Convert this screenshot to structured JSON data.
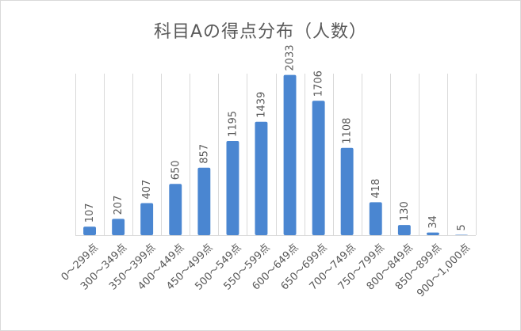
{
  "chart_data": {
    "type": "bar",
    "title": "科目Aの得点分布（人数）",
    "categories": [
      "0～299点",
      "300～349点",
      "350～399点",
      "400～449点",
      "450～499点",
      "500～549点",
      "550～599点",
      "600～649点",
      "650～699点",
      "700～749点",
      "750～799点",
      "800～849点",
      "850～899点",
      "900～1,000点"
    ],
    "values": [
      107,
      207,
      407,
      650,
      857,
      1195,
      1439,
      2033,
      1706,
      1108,
      418,
      130,
      34,
      5
    ],
    "xlabel": "",
    "ylabel": "",
    "ylim": [
      0,
      2200
    ],
    "grid": "vertical",
    "legend": "none",
    "bar_color": "#4a86d1"
  }
}
